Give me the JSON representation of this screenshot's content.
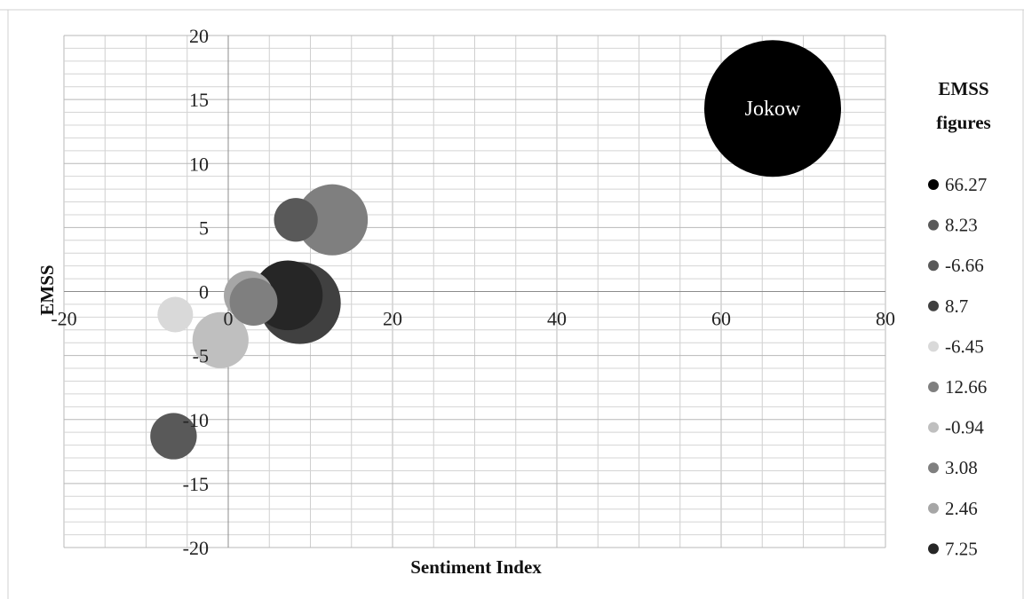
{
  "chart_data": {
    "type": "scatter",
    "subtype": "bubble",
    "xlabel": "Sentiment Index",
    "ylabel": "EMSS",
    "xlim": [
      -20,
      80
    ],
    "ylim": [
      -20,
      20
    ],
    "x_ticks": [
      "-20",
      "0",
      "20",
      "40",
      "60",
      "80"
    ],
    "y_ticks": [
      "20",
      "15",
      "10",
      "5",
      "0",
      "-5",
      "-10",
      "-15",
      "-20"
    ],
    "grid": true,
    "minor_grid": true,
    "legend": {
      "title_lines": [
        "EMSS",
        "figures"
      ],
      "placement": "right"
    },
    "series": [
      {
        "name": "66.27",
        "x": 66.27,
        "y": 14.3,
        "size": 10.0,
        "color": "#000000",
        "label": "Jokow"
      },
      {
        "name": "8.23",
        "x": 8.23,
        "y": 5.6,
        "size": 3.2,
        "color": "#595959"
      },
      {
        "name": "-6.66",
        "x": -6.66,
        "y": -11.3,
        "size": 3.4,
        "color": "#595959"
      },
      {
        "name": "8.7",
        "x": 8.7,
        "y": -0.9,
        "size": 6.0,
        "color": "#404040"
      },
      {
        "name": "-6.45",
        "x": -6.45,
        "y": -1.8,
        "size": 2.6,
        "color": "#d9d9d9"
      },
      {
        "name": "12.66",
        "x": 12.66,
        "y": 5.6,
        "size": 5.2,
        "color": "#7f7f7f"
      },
      {
        "name": "-0.94",
        "x": -0.94,
        "y": -3.8,
        "size": 4.1,
        "color": "#bfbfbf"
      },
      {
        "name": "3.08",
        "x": 3.08,
        "y": -0.8,
        "size": 3.5,
        "color": "#7f7f7f"
      },
      {
        "name": "2.46",
        "x": 2.46,
        "y": -0.3,
        "size": 3.6,
        "color": "#a6a6a6"
      },
      {
        "name": "7.25",
        "x": 7.25,
        "y": -0.3,
        "size": 5.1,
        "color": "#262626"
      }
    ]
  }
}
